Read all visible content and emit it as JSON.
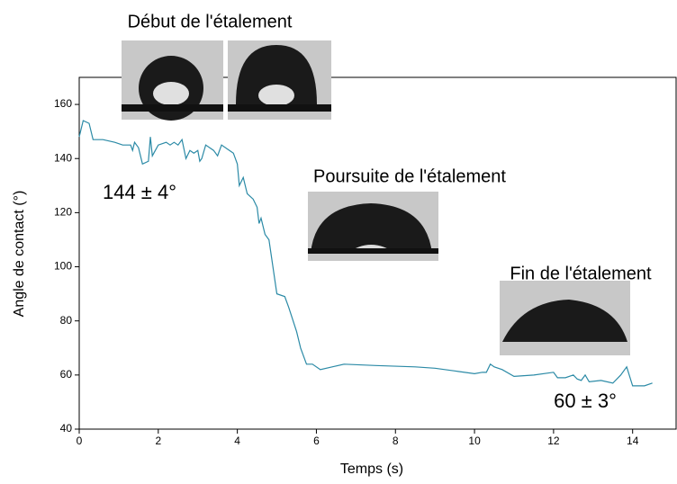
{
  "chart_data": {
    "type": "line",
    "xlabel": "Temps (s)",
    "ylabel": "Angle de contact (°)",
    "annotations": [
      "Début de l'étalement",
      "Poursuite de l'étalement",
      "Fin de l'étalement",
      "144 ± 4°",
      "60 ± 3°"
    ],
    "color": "#2b8aa6",
    "x": [
      0,
      0.1,
      0.25,
      0.35,
      0.6,
      0.9,
      1.1,
      1.3,
      1.35,
      1.4,
      1.5,
      1.6,
      1.75,
      1.8,
      1.85,
      2.0,
      2.2,
      2.3,
      2.4,
      2.5,
      2.6,
      2.7,
      2.8,
      2.9,
      3.0,
      3.05,
      3.1,
      3.2,
      3.4,
      3.5,
      3.6,
      3.8,
      3.9,
      4.0,
      4.05,
      4.15,
      4.25,
      4.4,
      4.5,
      4.55,
      4.6,
      4.7,
      4.8,
      4.85,
      4.9,
      5.0,
      5.2,
      5.3,
      5.5,
      5.6,
      5.75,
      5.9,
      6.1,
      6.4,
      6.7,
      7.5,
      8.5,
      9,
      9.5,
      10,
      10.2,
      10.3,
      10.4,
      10.5,
      10.7,
      11,
      11.5,
      12,
      12.1,
      12.3,
      12.5,
      12.6,
      12.7,
      12.8,
      12.9,
      13.2,
      13.5,
      13.7,
      13.85,
      14.0,
      14.3,
      14.5
    ],
    "values": [
      148,
      154,
      153,
      147,
      147,
      146,
      145,
      145,
      143,
      146,
      144,
      138,
      139,
      148,
      141,
      145,
      146,
      145,
      146,
      145,
      147,
      140,
      143,
      142,
      143,
      139,
      140,
      145,
      143,
      141,
      145,
      143,
      142,
      138,
      130,
      133,
      127,
      125,
      122,
      116,
      118,
      112,
      110,
      105,
      100,
      90,
      89,
      85,
      76,
      70,
      64,
      64,
      62,
      63,
      64,
      63.5,
      63,
      62.5,
      61.5,
      60.5,
      61,
      61,
      64,
      63,
      62,
      59.5,
      60,
      61,
      59,
      59,
      60,
      58.5,
      58,
      60,
      57.5,
      58,
      57,
      60,
      63,
      56,
      56,
      57
    ],
    "xlim": [
      0,
      15.1
    ],
    "ylim": [
      40,
      170
    ],
    "xticks": [
      0,
      2,
      4,
      6,
      8,
      10,
      12,
      14
    ],
    "yticks": [
      40,
      60,
      80,
      100,
      120,
      140,
      160
    ]
  }
}
